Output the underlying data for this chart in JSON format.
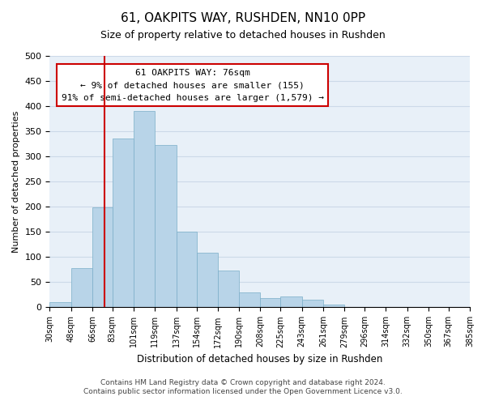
{
  "title": "61, OAKPITS WAY, RUSHDEN, NN10 0PP",
  "subtitle": "Size of property relative to detached houses in Rushden",
  "xlabel": "Distribution of detached houses by size in Rushden",
  "ylabel": "Number of detached properties",
  "bin_labels": [
    "30sqm",
    "48sqm",
    "66sqm",
    "83sqm",
    "101sqm",
    "119sqm",
    "137sqm",
    "154sqm",
    "172sqm",
    "190sqm",
    "208sqm",
    "225sqm",
    "243sqm",
    "261sqm",
    "279sqm",
    "296sqm",
    "314sqm",
    "332sqm",
    "350sqm",
    "367sqm",
    "385sqm"
  ],
  "bar_values": [
    10,
    78,
    199,
    335,
    390,
    323,
    150,
    109,
    73,
    30,
    19,
    22,
    15,
    6,
    1,
    0,
    0,
    0,
    0,
    0
  ],
  "bar_color": "#b8d4e8",
  "bar_edge_color": "#7aaec8",
  "annotation_text1": "61 OAKPITS WAY: 76sqm",
  "annotation_text2": "← 9% of detached houses are smaller (155)",
  "annotation_text3": "91% of semi-detached houses are larger (1,579) →",
  "annotation_box_color": "#ffffff",
  "annotation_box_edge": "#cc0000",
  "marker_line_color": "#cc0000",
  "grid_color": "#ccd9e8",
  "footer_line1": "Contains HM Land Registry data © Crown copyright and database right 2024.",
  "footer_line2": "Contains public sector information licensed under the Open Government Licence v3.0.",
  "ylim": [
    0,
    500
  ],
  "yticks": [
    0,
    50,
    100,
    150,
    200,
    250,
    300,
    350,
    400,
    450,
    500
  ],
  "background_color": "#ffffff",
  "plot_bg_color": "#e8f0f8",
  "bin_edges": [
    30,
    48,
    66,
    83,
    101,
    119,
    137,
    154,
    172,
    190,
    208,
    225,
    243,
    261,
    279,
    296,
    314,
    332,
    350,
    367,
    385
  ],
  "property_sqm": 76
}
